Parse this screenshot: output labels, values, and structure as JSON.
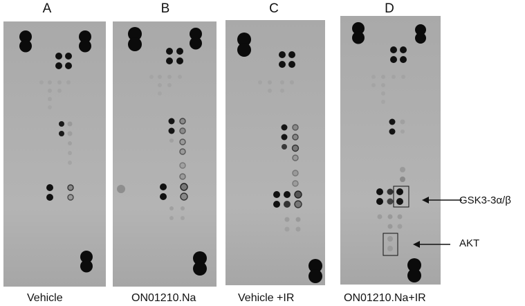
{
  "panels": [
    {
      "letter": "A",
      "caption": "Vehicle"
    },
    {
      "letter": "B",
      "caption": "ON01210.Na"
    },
    {
      "letter": "C",
      "caption": "Vehicle +IR"
    },
    {
      "letter": "D",
      "caption": "ON01210.Na+IR"
    }
  ],
  "annotations": {
    "gsk": "GSK3-3α/β",
    "akt": "AKT"
  }
}
